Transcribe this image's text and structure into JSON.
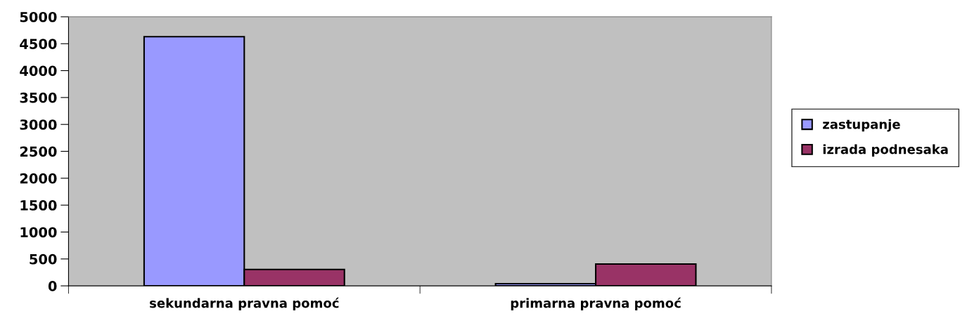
{
  "chart_data": {
    "type": "bar",
    "categories": [
      "sekundarna pravna pomoć",
      "primarna pravna pomoć"
    ],
    "series": [
      {
        "name": "zastupanje",
        "color": "#9999ff",
        "values": [
          4630,
          40
        ]
      },
      {
        "name": "izrada podnesaka",
        "color": "#993366",
        "values": [
          305,
          405
        ]
      }
    ],
    "ylim": [
      0,
      5000
    ],
    "yticks": [
      0,
      500,
      1000,
      1500,
      2000,
      2500,
      3000,
      3500,
      4000,
      4500,
      5000
    ],
    "grid": false,
    "legend": "right"
  }
}
